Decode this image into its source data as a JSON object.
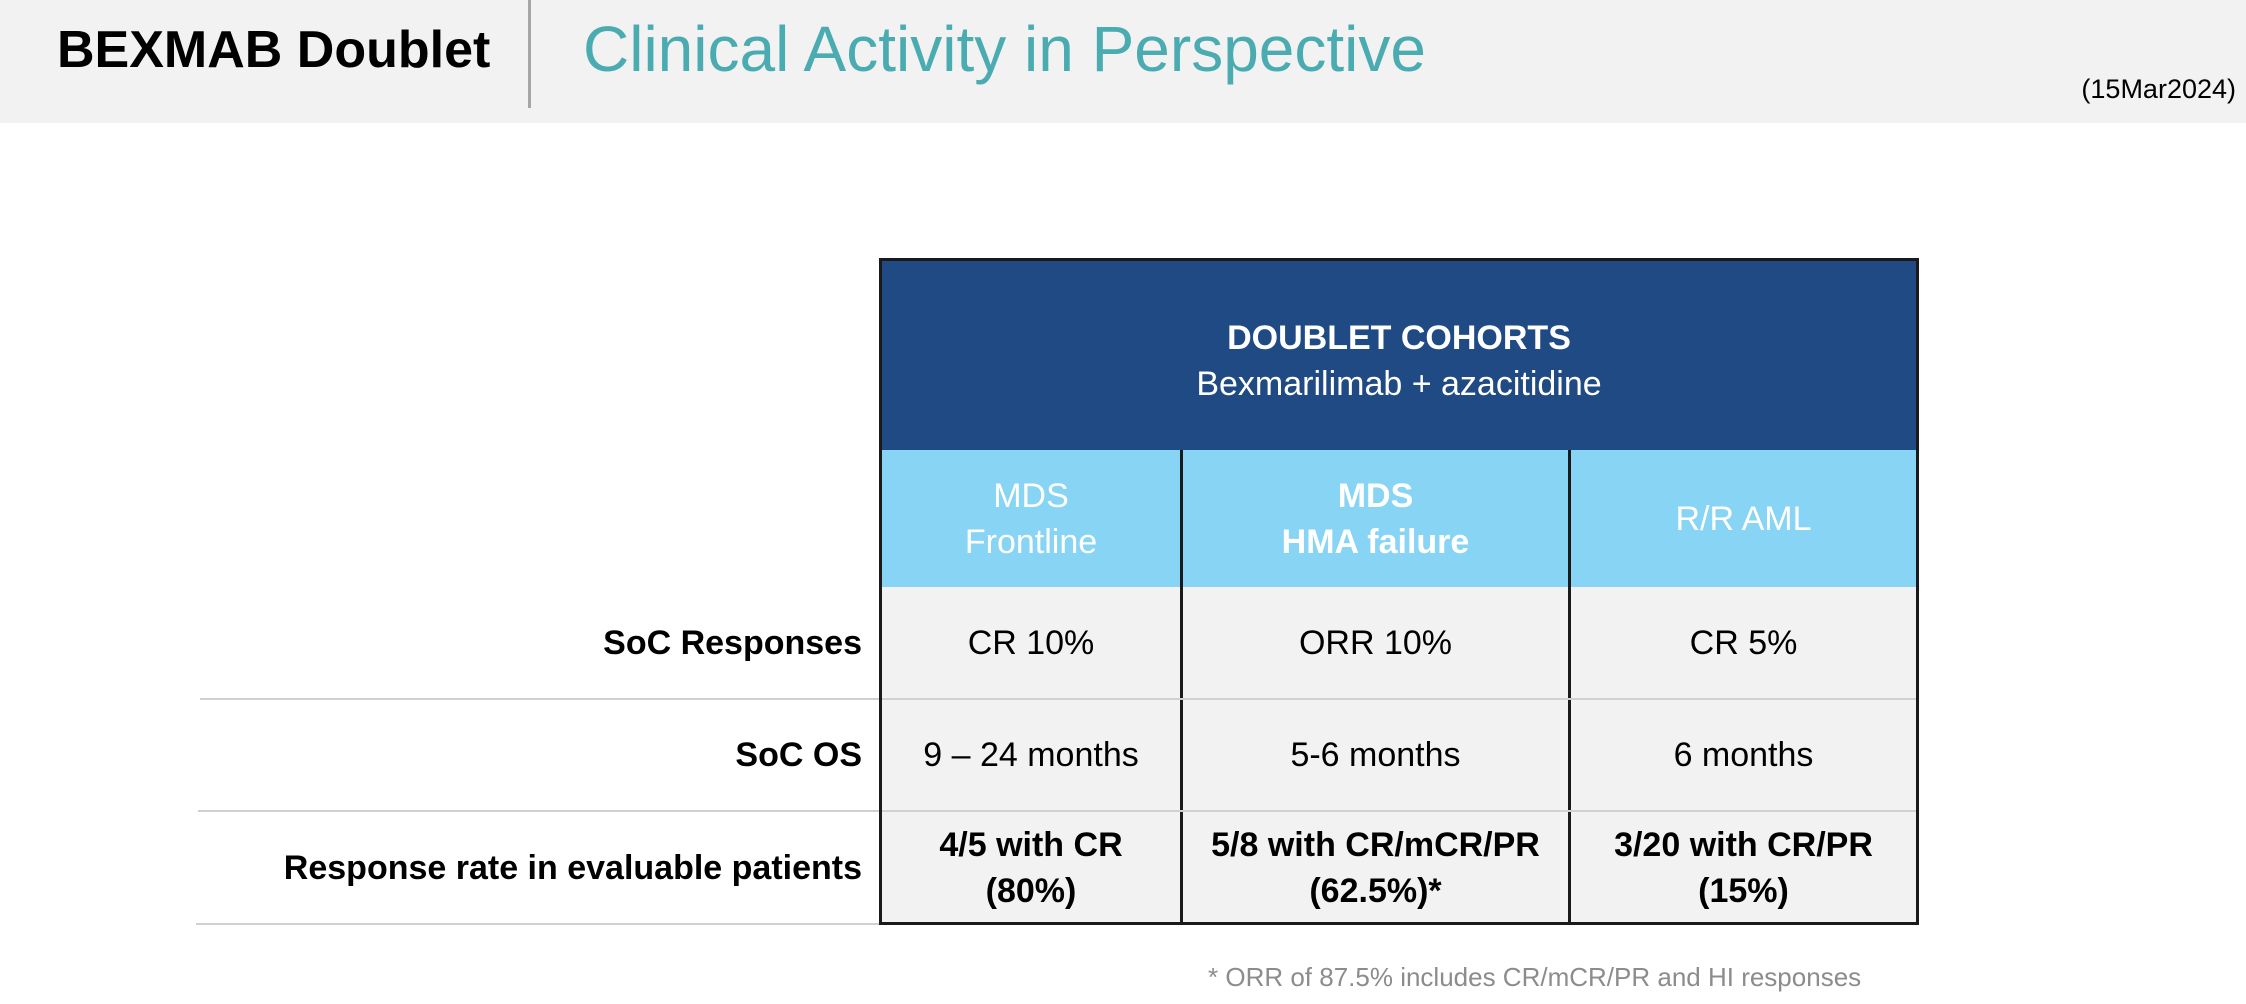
{
  "header": {
    "deck_title": "BEXMAB Doublet",
    "slide_title": "Clinical Activity in Perspective",
    "date": "(15Mar2024)"
  },
  "table": {
    "group_title": "DOUBLET COHORTS",
    "group_subtitle": "Bexmarilimab + azacitidine",
    "columns": [
      {
        "line1": "MDS",
        "line2": "Frontline"
      },
      {
        "line1": "MDS",
        "line2": "HMA failure"
      },
      {
        "line1": "R/R AML",
        "line2": ""
      }
    ],
    "rows": [
      {
        "label": "SoC Responses",
        "cells": [
          {
            "line1": "CR 10%",
            "line2": ""
          },
          {
            "line1": "ORR 10%",
            "line2": ""
          },
          {
            "line1": "CR 5%",
            "line2": ""
          }
        ]
      },
      {
        "label": "SoC OS",
        "cells": [
          {
            "line1": "9 – 24 months",
            "line2": ""
          },
          {
            "line1": "5-6 months",
            "line2": ""
          },
          {
            "line1": "6 months",
            "line2": ""
          }
        ]
      },
      {
        "label": "Response rate in evaluable patients",
        "cells": [
          {
            "line1": "4/5 with CR",
            "line2": "(80%)"
          },
          {
            "line1": "5/8 with CR/mCR/PR",
            "line2": "(62.5%)*"
          },
          {
            "line1": "3/20 with CR/PR",
            "line2": "(15%)"
          }
        ]
      }
    ]
  },
  "footnote": "* ORR of 87.5% includes CR/mCR/PR and HI responses",
  "colors": {
    "header_bg": "#f2f2f2",
    "title_teal": "#4aacb0",
    "group_header_navy": "#1f4a84",
    "col_header_lightblue": "#88d4f4",
    "cell_bg": "#f2f2f2"
  }
}
